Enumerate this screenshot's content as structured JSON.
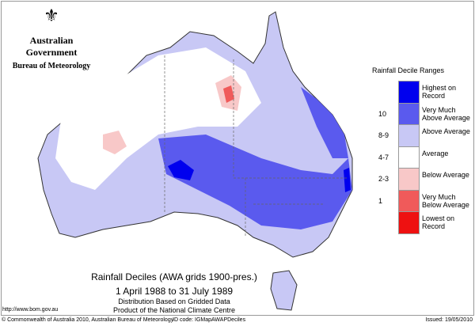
{
  "header": {
    "gov": "Australian Government",
    "bureau": "Bureau of Meteorology"
  },
  "legend": {
    "title": "Rainfall Decile Ranges",
    "items": [
      {
        "range": "",
        "label": "Highest on Record",
        "color": "#0000ee"
      },
      {
        "range": "10",
        "label": "Very Much Above Average",
        "color": "#5a5aee"
      },
      {
        "range": "8-9",
        "label": "Above Average",
        "color": "#c8c8f5"
      },
      {
        "range": "4-7",
        "label": "Average",
        "color": "#ffffff"
      },
      {
        "range": "2-3",
        "label": "Below Average",
        "color": "#f8c8c8"
      },
      {
        "range": "1",
        "label": "Very Much Below Average",
        "color": "#f05a5a"
      },
      {
        "range": "",
        "label": "Lowest on Record",
        "color": "#ee1111"
      }
    ]
  },
  "caption": {
    "title": "Rainfall Deciles (AWA grids 1900-pres.)",
    "period": "1 April 1988 to 31 July 1989",
    "line3": "Distribution Based on Gridded Data",
    "line4": "Product of the National Climate Centre"
  },
  "url": "http://www.bom.gov.au",
  "footer": {
    "copyright": "© Commonwealth of Australia 2010, Australian Bureau of Meteorology",
    "id": "ID code: IGMapAWAPDeciles",
    "issued": "Issued: 19/05/2010"
  }
}
